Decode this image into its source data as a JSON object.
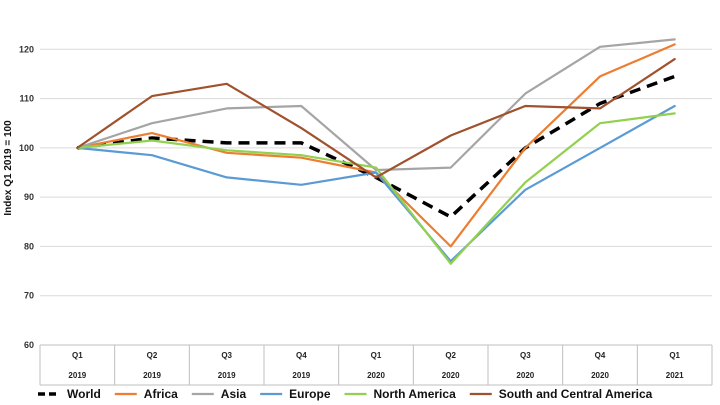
{
  "chart_data": {
    "type": "line",
    "title": "",
    "xlabel": "",
    "ylabel": "Index Q1 2019 = 100",
    "ylim": [
      60,
      130
    ],
    "yticks": [
      60,
      70,
      80,
      90,
      100,
      110,
      120
    ],
    "grid": "horizontal",
    "legend_position": "bottom",
    "categories": [
      {
        "quarter": "Q1",
        "year": "2019"
      },
      {
        "quarter": "Q2",
        "year": "2019"
      },
      {
        "quarter": "Q3",
        "year": "2019"
      },
      {
        "quarter": "Q4",
        "year": "2019"
      },
      {
        "quarter": "Q1",
        "year": "2020"
      },
      {
        "quarter": "Q2",
        "year": "2020"
      },
      {
        "quarter": "Q3",
        "year": "2020"
      },
      {
        "quarter": "Q4",
        "year": "2020"
      },
      {
        "quarter": "Q1",
        "year": "2021"
      }
    ],
    "series": [
      {
        "name": "World",
        "color": "#000000",
        "dashed": true,
        "values": [
          100,
          102,
          101,
          101,
          94,
          86,
          100,
          109,
          114.5
        ]
      },
      {
        "name": "Africa",
        "color": "#ED7D31",
        "dashed": false,
        "values": [
          100,
          103,
          99,
          98,
          95,
          80,
          100,
          114.5,
          121
        ]
      },
      {
        "name": "Asia",
        "color": "#A5A5A5",
        "dashed": false,
        "values": [
          100,
          105,
          108,
          108.5,
          95.5,
          96,
          111,
          120.5,
          122
        ]
      },
      {
        "name": "Europe",
        "color": "#5B9BD5",
        "dashed": false,
        "values": [
          100,
          98.5,
          94,
          92.5,
          95,
          77,
          91.5,
          100,
          108.5
        ]
      },
      {
        "name": "North America",
        "color": "#92D050",
        "dashed": false,
        "values": [
          100,
          101.5,
          99.5,
          98.5,
          96,
          76.5,
          93,
          105,
          107
        ]
      },
      {
        "name": "South and Central America",
        "color": "#A0522D",
        "dashed": false,
        "values": [
          100,
          110.5,
          113,
          104,
          94,
          102.5,
          108.5,
          108,
          118
        ]
      }
    ]
  }
}
